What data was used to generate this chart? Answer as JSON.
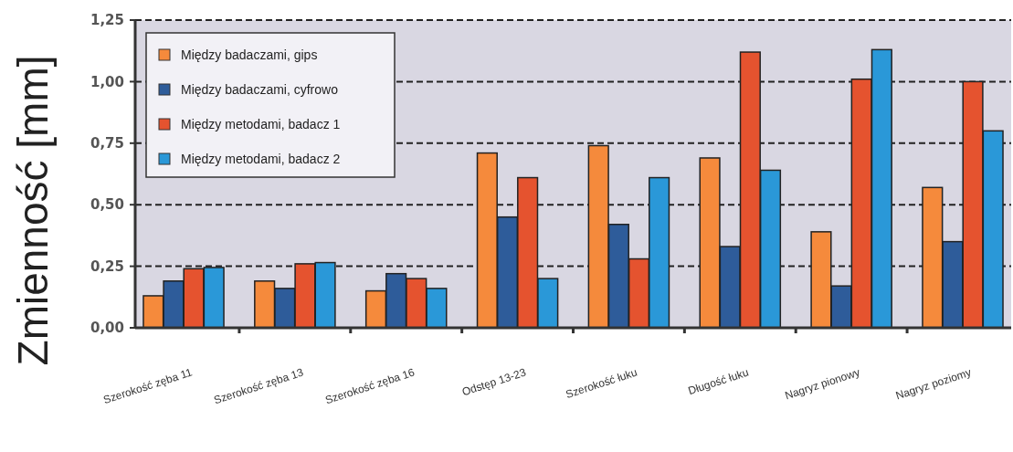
{
  "chart_data": {
    "type": "bar",
    "ylabel": "Zmienność [mm]",
    "categories": [
      "Szerokość zęba 11",
      "Szerokość zęba 13",
      "Szerokość zęba 16",
      "Odstęp 13-23",
      "Szerokość łuku",
      "Długość łuku",
      "Nagryz pionowy",
      "Nagryz poziomy"
    ],
    "series": [
      {
        "name": "Między badaczami, gips",
        "color": "#f58a3c",
        "values": [
          0.13,
          0.19,
          0.15,
          0.71,
          0.74,
          0.69,
          0.39,
          0.57
        ]
      },
      {
        "name": "Między badaczami, cyfrowo",
        "color": "#2e5c9a",
        "values": [
          0.19,
          0.16,
          0.22,
          0.45,
          0.42,
          0.33,
          0.17,
          0.35
        ]
      },
      {
        "name": "Między metodami, badacz 1",
        "color": "#e5532f",
        "values": [
          0.24,
          0.26,
          0.2,
          0.61,
          0.28,
          1.12,
          1.01,
          1.0
        ]
      },
      {
        "name": "Między metodami, badacz 2",
        "color": "#2a98d8",
        "values": [
          0.245,
          0.265,
          0.16,
          0.2,
          0.61,
          0.64,
          1.13,
          0.8
        ]
      }
    ],
    "ylim": [
      0,
      1.25
    ],
    "yticks": [
      {
        "value": 0,
        "label": "0,00"
      },
      {
        "value": 0.25,
        "label": "0,25"
      },
      {
        "value": 0.5,
        "label": "0,50"
      },
      {
        "value": 0.75,
        "label": "0,75"
      },
      {
        "value": 1,
        "label": "1,00"
      },
      {
        "value": 1.25,
        "label": "1,25"
      }
    ],
    "grid": "y",
    "legend": "top left"
  }
}
